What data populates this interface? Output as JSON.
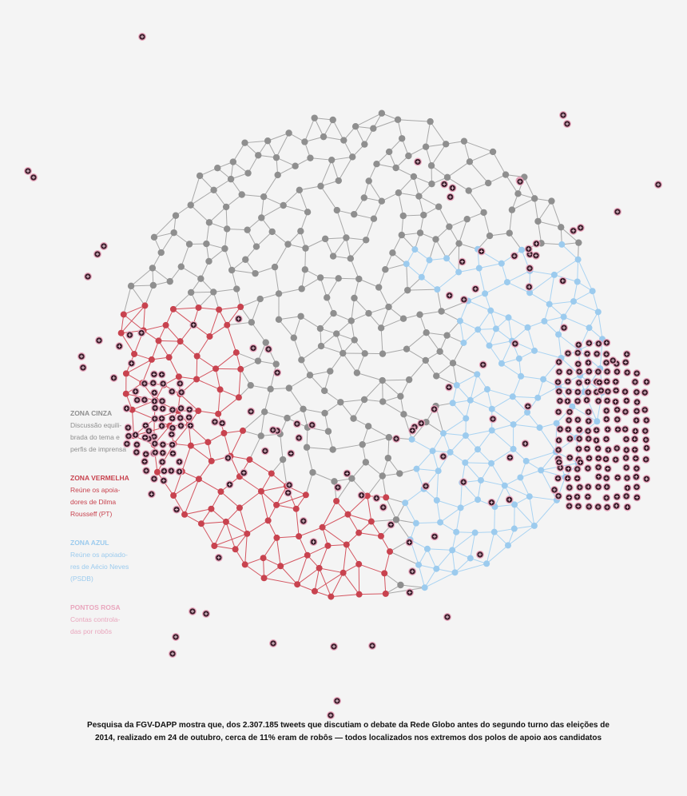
{
  "legend": [
    {
      "title": "ZONA CINZA",
      "lines": [
        "Discussão equili-",
        "brada do tema e",
        "perfis de imprensa"
      ]
    },
    {
      "title": "ZONA VERMELHA",
      "lines": [
        "Reúne os apoia-",
        "dores de Dilma",
        "Rousseff (PT)"
      ]
    },
    {
      "title": "ZONA AZUL",
      "lines": [
        "Reúne os apoiado-",
        "res de Aécio Neves",
        "(PSDB)"
      ]
    },
    {
      "title": "PONTOS ROSA",
      "lines": [
        "Contas controla-",
        "das por robôs"
      ]
    }
  ],
  "caption": [
    "Pesquisa da FGV-DAPP mostra que, dos 2.307.185 tweets que discutiam o debate da Rede Globo antes do segundo turno das eleições de",
    "2014, realizado em 24 de outubro, cerca de 11% eram de robôs — todos localizados nos extremos dos polos de apoio aos candidatos"
  ]
}
